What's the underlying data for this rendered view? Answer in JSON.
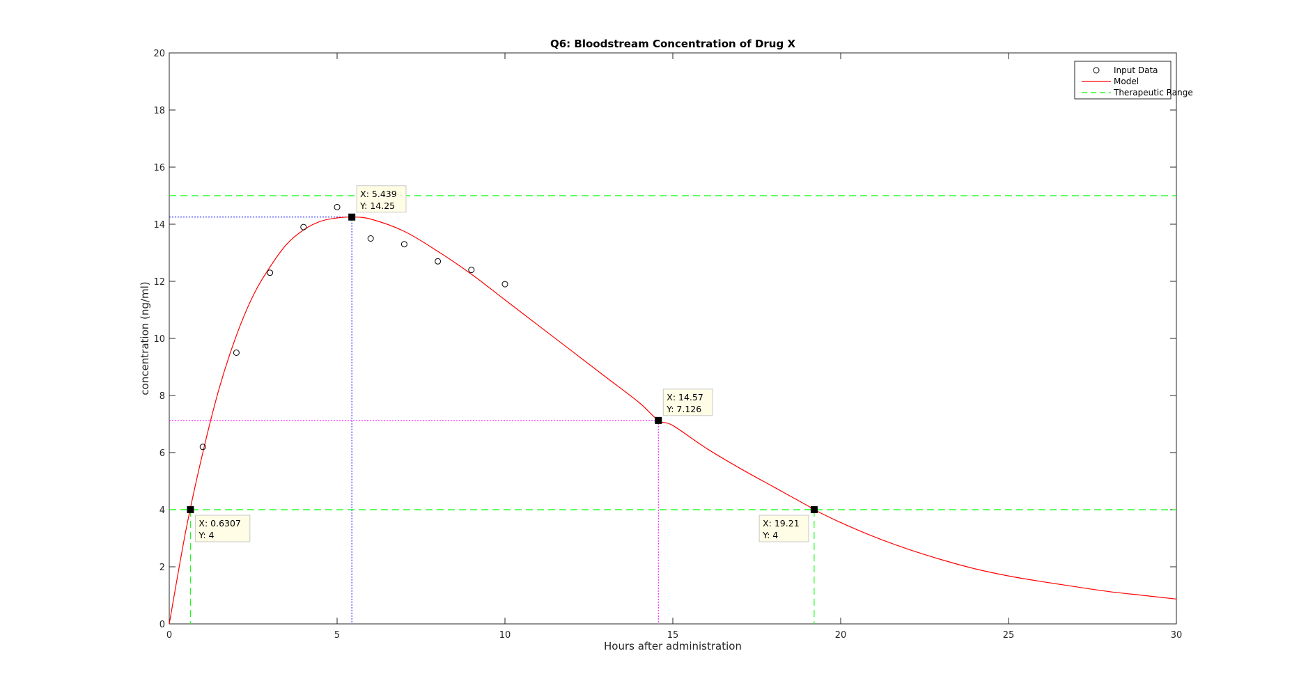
{
  "chart_data": {
    "type": "line",
    "title": "Q6: Bloodstream Concentration of Drug X",
    "xlabel": "Hours after administration",
    "ylabel": "concentration (ng/ml)",
    "xlim": [
      0,
      30
    ],
    "ylim": [
      0,
      20
    ],
    "x_ticks": [
      0,
      5,
      10,
      15,
      20,
      25,
      30
    ],
    "y_ticks": [
      0,
      2,
      4,
      6,
      8,
      10,
      12,
      14,
      16,
      18,
      20
    ],
    "grid": false,
    "legend_position": "top-right",
    "series": [
      {
        "name": "Input Data",
        "style": "markers",
        "marker": "circle",
        "color": "#000000",
        "x": [
          1,
          2,
          3,
          4,
          5,
          6,
          7,
          8,
          9,
          10
        ],
        "y": [
          6.2,
          9.5,
          12.3,
          13.9,
          14.6,
          13.5,
          13.3,
          12.7,
          12.4,
          11.9
        ]
      },
      {
        "name": "Model",
        "style": "solid",
        "color": "#ff0000",
        "x": [
          0,
          0.5,
          1,
          1.5,
          2,
          2.5,
          3,
          3.5,
          4,
          4.5,
          5,
          5.439,
          6,
          7,
          8,
          9,
          10,
          11,
          12,
          13,
          14,
          14.57,
          15,
          16,
          17,
          18,
          19,
          19.21,
          20,
          21,
          22,
          23,
          24,
          25,
          26,
          27,
          28,
          29,
          30
        ],
        "y": [
          0,
          3.3,
          6.0,
          8.3,
          10.1,
          11.5,
          12.5,
          13.3,
          13.8,
          14.1,
          14.22,
          14.25,
          14.18,
          13.75,
          13.05,
          12.25,
          11.35,
          10.45,
          9.55,
          8.65,
          7.75,
          7.126,
          6.95,
          6.15,
          5.45,
          4.8,
          4.15,
          4.0,
          3.55,
          3.05,
          2.62,
          2.25,
          1.93,
          1.68,
          1.48,
          1.3,
          1.13,
          1.0,
          0.87
        ]
      },
      {
        "name": "Therapeutic Range",
        "style": "dashed",
        "color": "#00ff00",
        "hlines": [
          4,
          15
        ]
      }
    ],
    "datatips": [
      {
        "x": 0.6307,
        "y": 4,
        "label_x": "X: 0.6307",
        "label_y": "Y: 4",
        "guide_color": "#00ff00",
        "guide_style": "dashed",
        "placement": "below-right"
      },
      {
        "x": 5.439,
        "y": 14.25,
        "label_x": "X: 5.439",
        "label_y": "Y: 14.25",
        "guide_color": "#0000ff",
        "guide_style": "dotted",
        "placement": "above-right"
      },
      {
        "x": 14.57,
        "y": 7.126,
        "label_x": "X: 14.57",
        "label_y": "Y: 7.126",
        "guide_color": "#ff00ff",
        "guide_style": "dotted",
        "placement": "above-right"
      },
      {
        "x": 19.21,
        "y": 4,
        "label_x": "X: 19.21",
        "label_y": "Y: 4",
        "guide_color": "#00ff00",
        "guide_style": "dashed",
        "placement": "below-left"
      }
    ]
  }
}
